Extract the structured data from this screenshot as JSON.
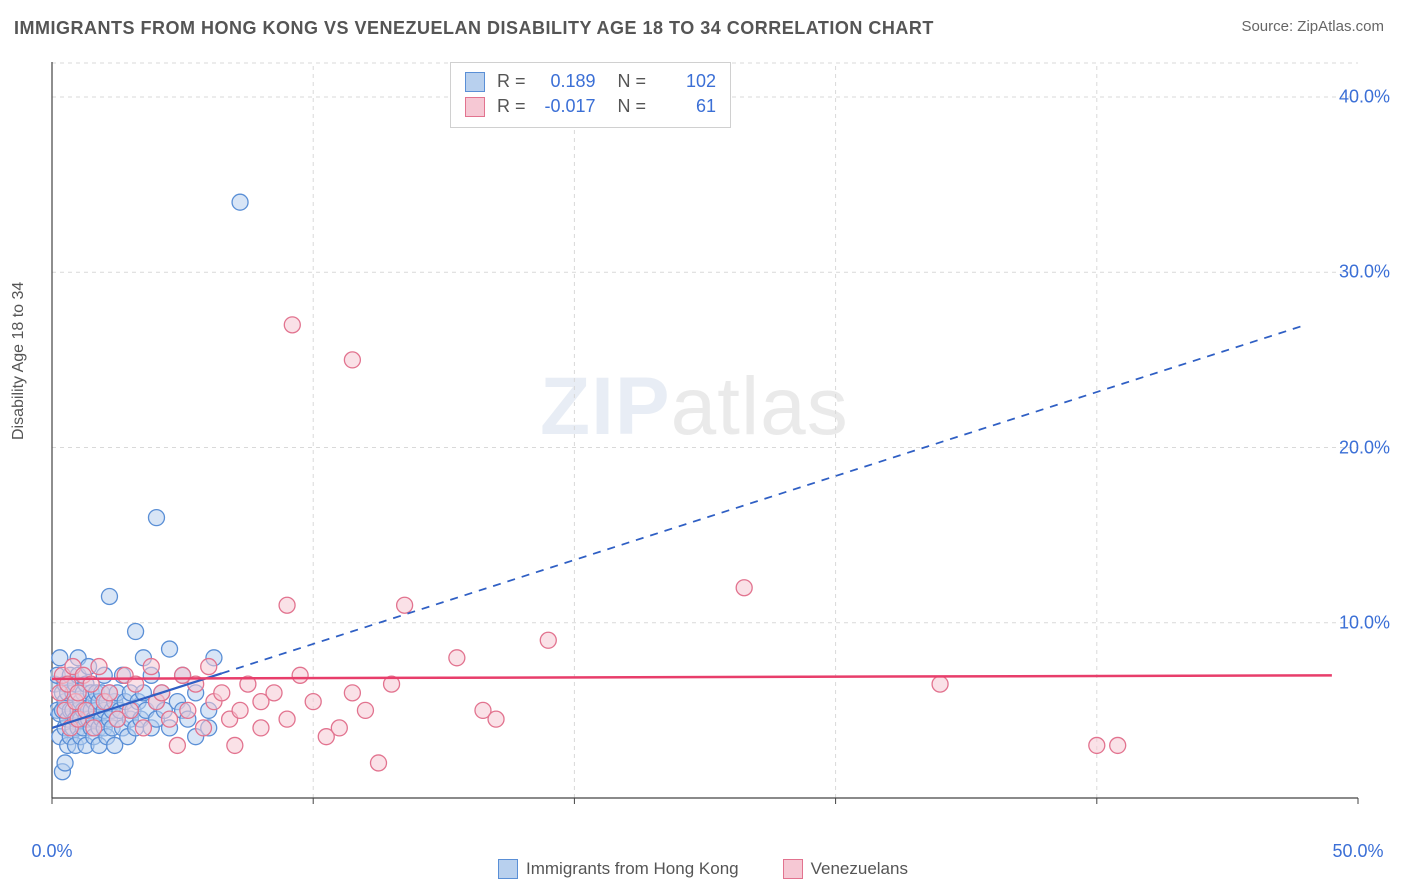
{
  "title": "IMMIGRANTS FROM HONG KONG VS VENEZUELAN DISABILITY AGE 18 TO 34 CORRELATION CHART",
  "source": "Source: ZipAtlas.com",
  "watermark_a": "ZIP",
  "watermark_b": "atlas",
  "y_axis_label": "Disability Age 18 to 34",
  "chart": {
    "type": "scatter",
    "xlim": [
      0,
      50
    ],
    "ylim": [
      0,
      42
    ],
    "xticks": [
      0,
      50
    ],
    "xtick_labels": [
      "0.0%",
      "50.0%"
    ],
    "yticks": [
      10,
      20,
      30,
      40
    ],
    "ytick_labels": [
      "10.0%",
      "20.0%",
      "30.0%",
      "40.0%"
    ],
    "grid_color": "#d9d9d9",
    "axis_color": "#444444",
    "background_color": "#ffffff",
    "marker_radius": 8,
    "marker_stroke_width": 1.3,
    "label_fontsize": 18,
    "label_color": "#3b6fd6",
    "series": [
      {
        "name": "Immigrants from Hong Kong",
        "fill": "#b8d0ee",
        "stroke": "#5a8fd6",
        "fill_opacity": 0.55,
        "R": "0.189",
        "N": "102",
        "trend": {
          "x1": 0,
          "y1": 4.0,
          "x2": 48,
          "y2": 27.0,
          "solid_until_x": 6.5,
          "color": "#2f5fc4",
          "width": 2.2
        },
        "points": [
          [
            0.1,
            6.5
          ],
          [
            0.2,
            5.0
          ],
          [
            0.2,
            7.0
          ],
          [
            0.3,
            3.5
          ],
          [
            0.3,
            8.0
          ],
          [
            0.3,
            4.8
          ],
          [
            0.4,
            5.0
          ],
          [
            0.4,
            6.0
          ],
          [
            0.4,
            1.5
          ],
          [
            0.5,
            4.0
          ],
          [
            0.5,
            5.5
          ],
          [
            0.5,
            6.5
          ],
          [
            0.5,
            2.0
          ],
          [
            0.6,
            4.5
          ],
          [
            0.6,
            6.0
          ],
          [
            0.6,
            3.0
          ],
          [
            0.7,
            5.0
          ],
          [
            0.7,
            3.5
          ],
          [
            0.7,
            7.0
          ],
          [
            0.8,
            4.0
          ],
          [
            0.8,
            5.0
          ],
          [
            0.8,
            6.0
          ],
          [
            0.9,
            4.5
          ],
          [
            0.9,
            3.0
          ],
          [
            0.9,
            6.5
          ],
          [
            1.0,
            5.0
          ],
          [
            1.0,
            4.0
          ],
          [
            1.0,
            7.0
          ],
          [
            1.0,
            8.0
          ],
          [
            1.1,
            5.5
          ],
          [
            1.1,
            3.5
          ],
          [
            1.1,
            4.5
          ],
          [
            1.2,
            6.0
          ],
          [
            1.2,
            5.0
          ],
          [
            1.2,
            4.0
          ],
          [
            1.3,
            4.5
          ],
          [
            1.3,
            6.5
          ],
          [
            1.3,
            3.0
          ],
          [
            1.4,
            5.0
          ],
          [
            1.4,
            4.5
          ],
          [
            1.4,
            7.5
          ],
          [
            1.5,
            5.0
          ],
          [
            1.5,
            4.0
          ],
          [
            1.5,
            6.0
          ],
          [
            1.6,
            5.5
          ],
          [
            1.6,
            3.5
          ],
          [
            1.6,
            4.5
          ],
          [
            1.7,
            6.0
          ],
          [
            1.7,
            5.0
          ],
          [
            1.8,
            4.0
          ],
          [
            1.8,
            5.5
          ],
          [
            1.8,
            3.0
          ],
          [
            1.9,
            4.5
          ],
          [
            1.9,
            6.0
          ],
          [
            2.0,
            5.0
          ],
          [
            2.0,
            4.0
          ],
          [
            2.0,
            7.0
          ],
          [
            2.1,
            5.5
          ],
          [
            2.1,
            3.5
          ],
          [
            2.2,
            4.5
          ],
          [
            2.2,
            6.0
          ],
          [
            2.3,
            5.0
          ],
          [
            2.3,
            4.0
          ],
          [
            2.4,
            5.5
          ],
          [
            2.4,
            3.0
          ],
          [
            2.5,
            4.5
          ],
          [
            2.5,
            6.0
          ],
          [
            2.6,
            5.0
          ],
          [
            2.7,
            4.0
          ],
          [
            2.7,
            7.0
          ],
          [
            2.8,
            5.5
          ],
          [
            2.9,
            3.5
          ],
          [
            3.0,
            4.5
          ],
          [
            3.0,
            6.0
          ],
          [
            3.1,
            5.0
          ],
          [
            3.2,
            4.0
          ],
          [
            3.3,
            5.5
          ],
          [
            3.4,
            4.5
          ],
          [
            3.5,
            6.0
          ],
          [
            3.5,
            8.0
          ],
          [
            3.6,
            5.0
          ],
          [
            3.8,
            4.0
          ],
          [
            3.8,
            7.0
          ],
          [
            4.0,
            5.5
          ],
          [
            4.0,
            4.5
          ],
          [
            4.2,
            6.0
          ],
          [
            4.3,
            5.0
          ],
          [
            4.5,
            4.0
          ],
          [
            4.5,
            8.5
          ],
          [
            4.8,
            5.5
          ],
          [
            5.0,
            5.0
          ],
          [
            5.0,
            7.0
          ],
          [
            5.2,
            4.5
          ],
          [
            5.5,
            6.0
          ],
          [
            5.5,
            3.5
          ],
          [
            6.0,
            5.0
          ],
          [
            6.0,
            4.0
          ],
          [
            6.2,
            8.0
          ],
          [
            3.2,
            9.5
          ],
          [
            2.2,
            11.5
          ],
          [
            4.0,
            16.0
          ],
          [
            7.2,
            34.0
          ]
        ]
      },
      {
        "name": "Venezuelans",
        "fill": "#f6c8d4",
        "stroke": "#e2738f",
        "fill_opacity": 0.55,
        "R": "-0.017",
        "N": "61",
        "trend": {
          "x1": 0,
          "y1": 6.8,
          "x2": 49,
          "y2": 7.0,
          "solid_until_x": 49,
          "color": "#e83e6b",
          "width": 2.5
        },
        "points": [
          [
            0.3,
            6.0
          ],
          [
            0.4,
            7.0
          ],
          [
            0.5,
            5.0
          ],
          [
            0.6,
            6.5
          ],
          [
            0.7,
            4.0
          ],
          [
            0.8,
            7.5
          ],
          [
            0.9,
            5.5
          ],
          [
            1.0,
            6.0
          ],
          [
            1.0,
            4.5
          ],
          [
            1.2,
            7.0
          ],
          [
            1.3,
            5.0
          ],
          [
            1.5,
            6.5
          ],
          [
            1.6,
            4.0
          ],
          [
            1.8,
            7.5
          ],
          [
            2.0,
            5.5
          ],
          [
            2.2,
            6.0
          ],
          [
            2.5,
            4.5
          ],
          [
            2.8,
            7.0
          ],
          [
            3.0,
            5.0
          ],
          [
            3.2,
            6.5
          ],
          [
            3.5,
            4.0
          ],
          [
            3.8,
            7.5
          ],
          [
            4.0,
            5.5
          ],
          [
            4.2,
            6.0
          ],
          [
            4.5,
            4.5
          ],
          [
            4.8,
            3.0
          ],
          [
            5.0,
            7.0
          ],
          [
            5.2,
            5.0
          ],
          [
            5.5,
            6.5
          ],
          [
            5.8,
            4.0
          ],
          [
            6.0,
            7.5
          ],
          [
            6.2,
            5.5
          ],
          [
            6.5,
            6.0
          ],
          [
            6.8,
            4.5
          ],
          [
            7.0,
            3.0
          ],
          [
            7.2,
            5.0
          ],
          [
            7.5,
            6.5
          ],
          [
            8.0,
            4.0
          ],
          [
            8.0,
            5.5
          ],
          [
            8.5,
            6.0
          ],
          [
            9.0,
            4.5
          ],
          [
            9.5,
            7.0
          ],
          [
            10.0,
            5.5
          ],
          [
            10.5,
            3.5
          ],
          [
            11.0,
            4.0
          ],
          [
            11.5,
            6.0
          ],
          [
            12.0,
            5.0
          ],
          [
            12.5,
            2.0
          ],
          [
            13.0,
            6.5
          ],
          [
            9.2,
            27.0
          ],
          [
            11.5,
            25.0
          ],
          [
            9.0,
            11.0
          ],
          [
            13.5,
            11.0
          ],
          [
            15.5,
            8.0
          ],
          [
            16.5,
            5.0
          ],
          [
            17.0,
            4.5
          ],
          [
            19.0,
            9.0
          ],
          [
            26.5,
            12.0
          ],
          [
            34.0,
            6.5
          ],
          [
            40.0,
            3.0
          ],
          [
            40.8,
            3.0
          ]
        ]
      }
    ]
  },
  "stats_labels": {
    "R": "R =",
    "N": "N ="
  },
  "legend": {
    "items": [
      {
        "label": "Immigrants from Hong Kong",
        "fill": "#b8d0ee",
        "stroke": "#5a8fd6"
      },
      {
        "label": "Venezuelans",
        "fill": "#f6c8d4",
        "stroke": "#e2738f"
      }
    ]
  }
}
